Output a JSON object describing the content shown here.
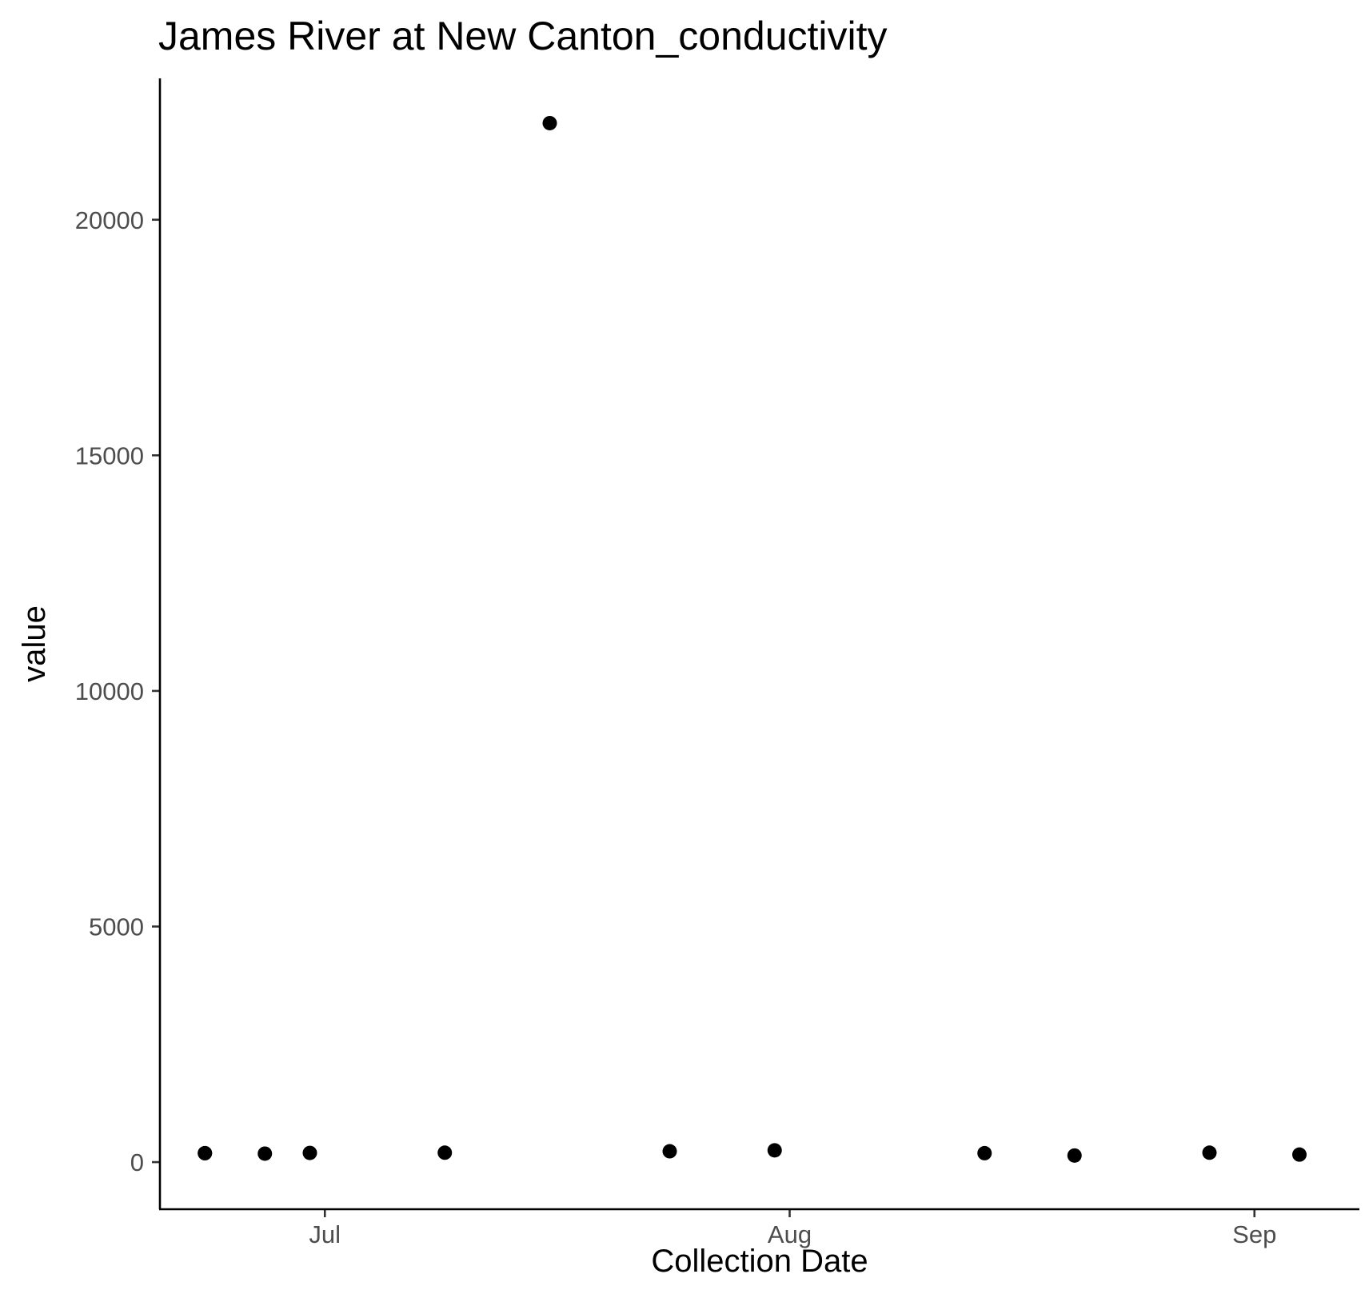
{
  "chart_data": {
    "type": "scatter",
    "title": "James River at New Canton_conductivity",
    "xlabel": "Collection Date",
    "ylabel": "value",
    "x_type": "date",
    "xlim": [
      "2023-06-20",
      "2023-09-08"
    ],
    "ylim": [
      -1000,
      23000
    ],
    "x_ticks": [
      {
        "label": "Jul",
        "date": "2023-07-01"
      },
      {
        "label": "Aug",
        "date": "2023-08-01"
      },
      {
        "label": "Sep",
        "date": "2023-09-01"
      }
    ],
    "y_ticks": [
      0,
      5000,
      10000,
      15000,
      20000
    ],
    "grid": false,
    "legend": "none",
    "point_color": "#000000",
    "series": [
      {
        "points": [
          {
            "x": "2023-06-23",
            "y": 190
          },
          {
            "x": "2023-06-23",
            "y": 190
          },
          {
            "x": "2023-06-27",
            "y": 180
          },
          {
            "x": "2023-06-30",
            "y": 195
          },
          {
            "x": "2023-07-09",
            "y": 200
          },
          {
            "x": "2023-07-16",
            "y": 22050
          },
          {
            "x": "2023-07-24",
            "y": 230
          },
          {
            "x": "2023-07-31",
            "y": 250
          },
          {
            "x": "2023-08-14",
            "y": 190
          },
          {
            "x": "2023-08-20",
            "y": 140
          },
          {
            "x": "2023-08-29",
            "y": 200
          },
          {
            "x": "2023-09-04",
            "y": 160
          }
        ]
      }
    ]
  }
}
